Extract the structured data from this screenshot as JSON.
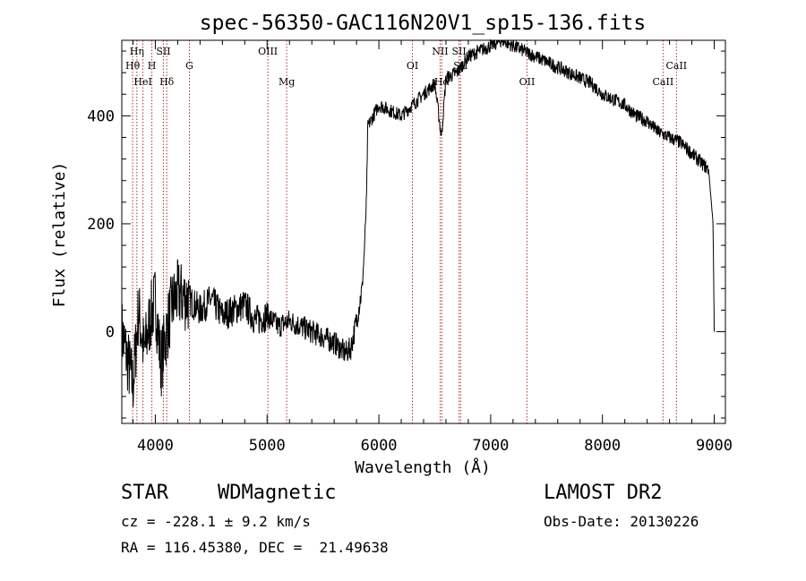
{
  "chart_data": {
    "type": "line",
    "title": "spec-56350-GAC116N20V1_sp15-136.fits",
    "xlabel": "Wavelength (Å)",
    "ylabel": "Flux (relative)",
    "xlim": [
      3700,
      9100
    ],
    "ylim": [
      -170,
      540
    ],
    "xticks": [
      4000,
      5000,
      6000,
      7000,
      8000,
      9000
    ],
    "yticks": [
      0,
      200,
      400
    ],
    "line_color": "#000000",
    "marker_color": "#b03030",
    "spectral_lines": [
      {
        "label": "Hη",
        "wavelength": 3835,
        "row": 0
      },
      {
        "label": "Hθ",
        "wavelength": 3797,
        "row": 1
      },
      {
        "label": "HeI",
        "wavelength": 3889,
        "row": 2
      },
      {
        "label": "SII",
        "wavelength": 4072,
        "row": 0
      },
      {
        "label": "H",
        "wavelength": 3969,
        "row": 1
      },
      {
        "label": "Hδ",
        "wavelength": 4102,
        "row": 2
      },
      {
        "label": "G",
        "wavelength": 4305,
        "row": 1
      },
      {
        "label": "OIII",
        "wavelength": 5007,
        "row": 0
      },
      {
        "label": "Mg",
        "wavelength": 5175,
        "row": 2
      },
      {
        "label": "OI",
        "wavelength": 6300,
        "row": 1
      },
      {
        "label": "NII",
        "wavelength": 6548,
        "row": 0
      },
      {
        "label": "Hα",
        "wavelength": 6563,
        "row": 2
      },
      {
        "label": "SII",
        "wavelength": 6717,
        "row": 0
      },
      {
        "label": "SII",
        "wavelength": 6731,
        "row": 1
      },
      {
        "label": "OII",
        "wavelength": 7325,
        "row": 2
      },
      {
        "label": "CaII",
        "wavelength": 8542,
        "row": 2
      },
      {
        "label": "CaII",
        "wavelength": 8662,
        "row": 1
      }
    ],
    "series": [
      {
        "x": [
          3700,
          3750,
          3800,
          3850,
          3900,
          3950,
          4000,
          4050,
          4100,
          4150,
          4200,
          4300,
          4400,
          4500,
          4600,
          4700,
          4800,
          4900,
          5000,
          5100,
          5200,
          5300,
          5400,
          5500,
          5600,
          5700,
          5750,
          5800,
          5850,
          5870,
          5890,
          5900,
          5950,
          6000,
          6100,
          6200,
          6300,
          6400,
          6500,
          6560,
          6600,
          6700,
          6800,
          6900,
          7000,
          7100,
          7200,
          7300,
          7400,
          7500,
          7600,
          7700,
          7800,
          7900,
          8000,
          8100,
          8200,
          8300,
          8400,
          8500,
          8600,
          8700,
          8800,
          8900,
          8950,
          8990,
          9000
        ],
        "y": [
          0,
          -50,
          -100,
          40,
          -40,
          20,
          60,
          -60,
          0,
          50,
          70,
          60,
          40,
          60,
          30,
          40,
          50,
          20,
          30,
          10,
          20,
          10,
          0,
          -10,
          -20,
          -40,
          -30,
          20,
          80,
          150,
          250,
          380,
          400,
          420,
          410,
          400,
          420,
          440,
          460,
          360,
          470,
          480,
          510,
          520,
          530,
          540,
          530,
          520,
          510,
          500,
          490,
          480,
          470,
          460,
          440,
          430,
          420,
          400,
          390,
          370,
          360,
          350,
          330,
          310,
          300,
          200,
          0
        ]
      }
    ]
  },
  "info": {
    "class": "STAR",
    "subclass": "WDMagnetic",
    "survey": "LAMOST DR2",
    "cz": "cz = -228.1 ± 9.2 km/s",
    "obs_date": "Obs-Date: 20130226",
    "coords": "RA = 116.45380, DEC =  21.49638"
  }
}
